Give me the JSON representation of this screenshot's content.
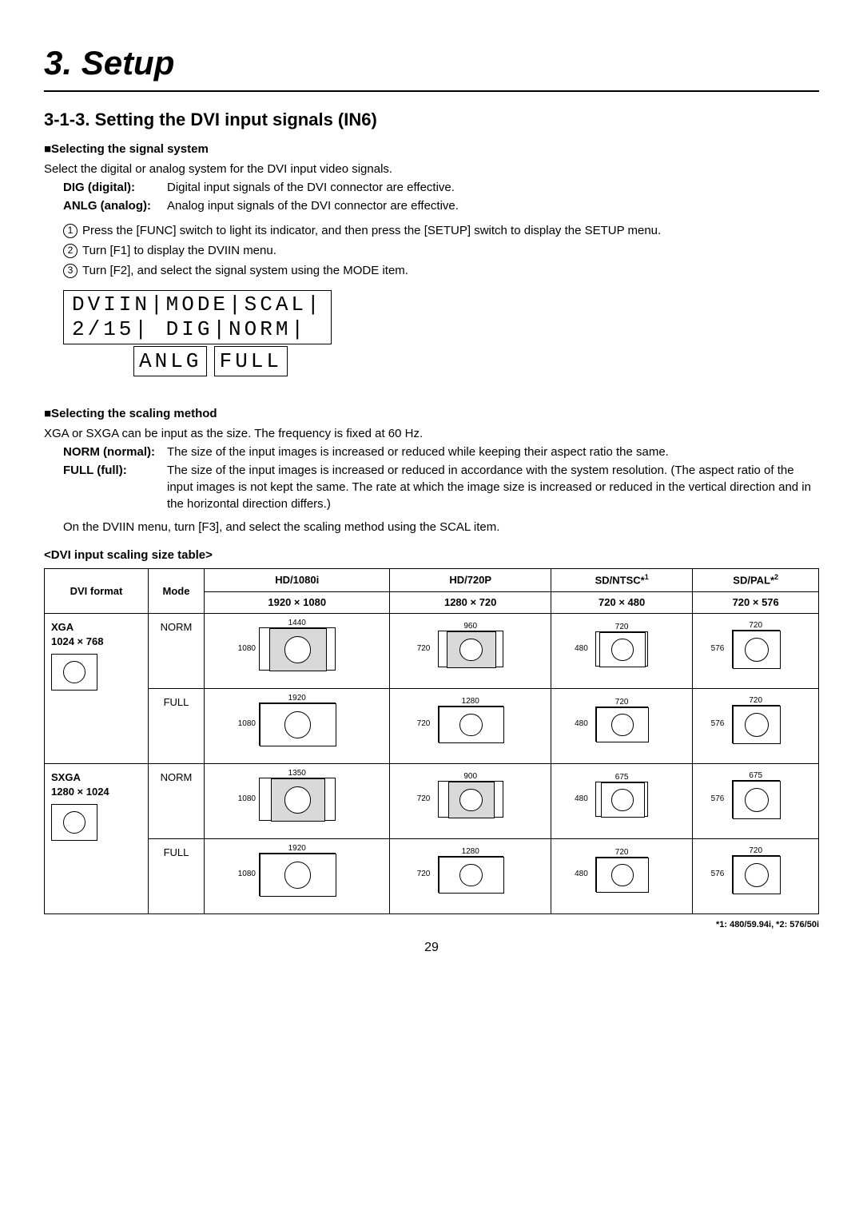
{
  "chapter": "3. Setup",
  "section": "3-1-3. Setting the DVI input signals (IN6)",
  "sub1": {
    "heading": "■Selecting the signal system",
    "intro": "Select the digital or analog system for the DVI input video signals.",
    "defs": [
      {
        "term": "DIG (digital):",
        "desc": "Digital input signals of the DVI connector are effective."
      },
      {
        "term": "ANLG (analog):",
        "desc": "Analog input signals of the DVI connector are effective."
      }
    ],
    "steps": [
      "Press the [FUNC] switch to light its indicator, and then press the [SETUP] switch to display the SETUP menu.",
      "Turn [F1] to display the DVIIN menu.",
      "Turn [F2], and select the signal system using the MODE item."
    ],
    "lcd_line1": "DVIIN|MODE|SCAL|",
    "lcd_line2": " 2/15|  DIG|NORM|",
    "lcd_alt1": "ANLG",
    "lcd_alt2": "FULL"
  },
  "sub2": {
    "heading": "■Selecting the scaling method",
    "intro": "XGA or SXGA can be input as the size. The frequency is fixed at 60 Hz.",
    "defs": [
      {
        "term": "NORM (normal):",
        "desc": "The size of the input images is increased or reduced while keeping their aspect ratio the same."
      },
      {
        "term": "FULL (full):",
        "desc": "The size of the input images is increased or reduced in accordance with the system resolution. (The aspect ratio of the input images is not kept the same. The rate at which the image size is increased or reduced in the vertical direction and in the horizontal direction differs.)"
      }
    ],
    "note": "On the DVIIN menu, turn [F3], and select the scaling method using the SCAL item."
  },
  "table": {
    "title": "<DVI input scaling size table>",
    "head": {
      "fmt": "DVI format",
      "mode": "Mode",
      "cols": [
        {
          "t1": "HD/1080i",
          "t2": "1920 × 1080"
        },
        {
          "t1": "HD/720P",
          "t2": "1280 × 720"
        },
        {
          "t1": "SD/NTSC*",
          "sup": "1",
          "t2": "720 × 480"
        },
        {
          "t1": "SD/PAL*",
          "sup": "2",
          "t2": "720 × 576"
        }
      ]
    },
    "rows": [
      {
        "fmt_name": "XGA",
        "fmt_res": "1024 × 768",
        "modes": [
          {
            "label": "NORM",
            "cells": [
              {
                "ow": 96,
                "oh": 54,
                "iw": 72,
                "ih": 54,
                "gray": true,
                "top": "1440",
                "left": "1080"
              },
              {
                "ow": 82,
                "oh": 46,
                "iw": 62,
                "ih": 46,
                "gray": true,
                "top": "960",
                "left": "720"
              },
              {
                "ow": 66,
                "oh": 44,
                "iw": 58,
                "ih": 44,
                "gray": false,
                "top": "720",
                "left": "480"
              },
              {
                "ow": 60,
                "oh": 48,
                "iw": 60,
                "ih": 48,
                "gray": false,
                "top": "720",
                "left": "576"
              }
            ]
          },
          {
            "label": "FULL",
            "cells": [
              {
                "ow": 96,
                "oh": 54,
                "iw": 96,
                "ih": 54,
                "gray": false,
                "top": "1920",
                "left": "1080"
              },
              {
                "ow": 82,
                "oh": 46,
                "iw": 82,
                "ih": 46,
                "gray": false,
                "top": "1280",
                "left": "720"
              },
              {
                "ow": 66,
                "oh": 44,
                "iw": 66,
                "ih": 44,
                "gray": false,
                "top": "720",
                "left": "480"
              },
              {
                "ow": 60,
                "oh": 48,
                "iw": 60,
                "ih": 48,
                "gray": false,
                "top": "720",
                "left": "576"
              }
            ]
          }
        ]
      },
      {
        "fmt_name": "SXGA",
        "fmt_res": "1280 × 1024",
        "modes": [
          {
            "label": "NORM",
            "cells": [
              {
                "ow": 96,
                "oh": 54,
                "iw": 68,
                "ih": 54,
                "gray": true,
                "top": "1350",
                "left": "1080"
              },
              {
                "ow": 82,
                "oh": 46,
                "iw": 58,
                "ih": 46,
                "gray": true,
                "top": "900",
                "left": "720"
              },
              {
                "ow": 66,
                "oh": 44,
                "iw": 55,
                "ih": 44,
                "gray": false,
                "top": "675",
                "left": "480"
              },
              {
                "ow": 60,
                "oh": 48,
                "iw": 60,
                "ih": 48,
                "gray": false,
                "top": "675",
                "left": "576"
              }
            ]
          },
          {
            "label": "FULL",
            "cells": [
              {
                "ow": 96,
                "oh": 54,
                "iw": 96,
                "ih": 54,
                "gray": false,
                "top": "1920",
                "left": "1080"
              },
              {
                "ow": 82,
                "oh": 46,
                "iw": 82,
                "ih": 46,
                "gray": false,
                "top": "1280",
                "left": "720"
              },
              {
                "ow": 66,
                "oh": 44,
                "iw": 66,
                "ih": 44,
                "gray": false,
                "top": "720",
                "left": "480"
              },
              {
                "ow": 60,
                "oh": 48,
                "iw": 60,
                "ih": 48,
                "gray": false,
                "top": "720",
                "left": "576"
              }
            ]
          }
        ]
      }
    ],
    "footnote": "*1: 480/59.94i, *2: 576/50i"
  },
  "page_number": "29"
}
